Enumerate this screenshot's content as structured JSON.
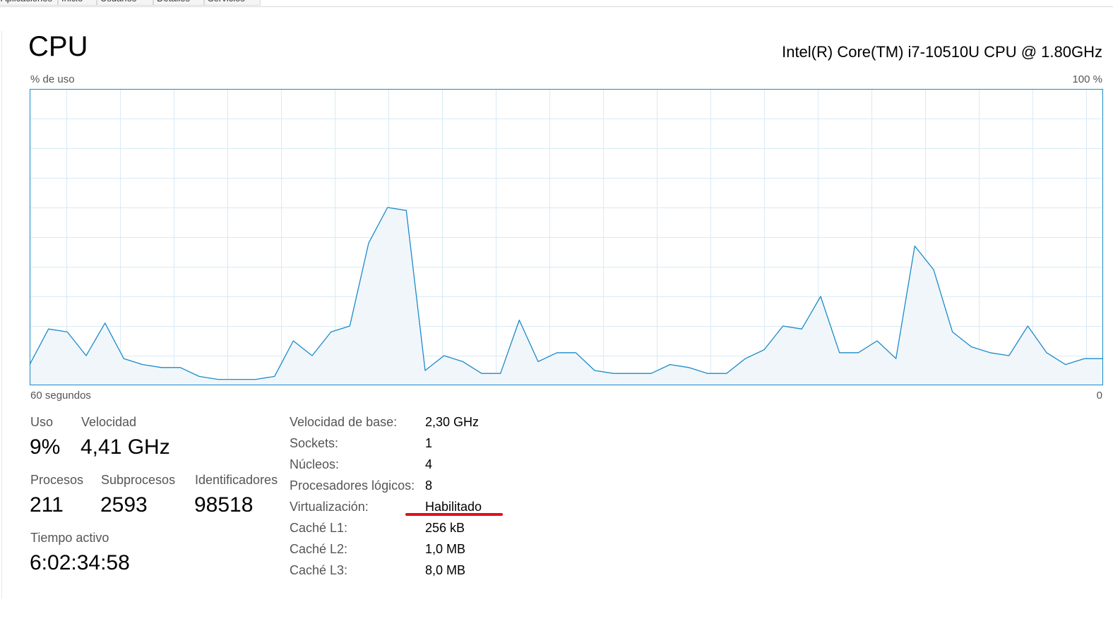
{
  "tabs": [
    {
      "label": "Aplicaciones"
    },
    {
      "label": "Inicio"
    },
    {
      "label": "Usuarios"
    },
    {
      "label": "Detalles"
    },
    {
      "label": "Servicios"
    }
  ],
  "header": {
    "title": "CPU",
    "model": "Intel(R) Core(TM) i7-10510U CPU @ 1.80GHz"
  },
  "graph": {
    "y_label": "% de uso",
    "y_max_label": "100 %",
    "x_label": "60 segundos",
    "x_min_label": "0",
    "line_color": "#1a8bc9",
    "fill_color": "#f1f6fb",
    "grid_color": "#d9eaf5",
    "border_color": "#1a8bc9"
  },
  "chart_data": {
    "type": "area",
    "title": "CPU",
    "xlabel": "60 segundos",
    "ylabel": "% de uso",
    "xlim": [
      60,
      0
    ],
    "ylim": [
      0,
      100
    ],
    "grid": true,
    "series": [
      {
        "name": "% de uso",
        "values": [
          7,
          19,
          18,
          10,
          21,
          9,
          7,
          6,
          6,
          3,
          2,
          2,
          2,
          3,
          15,
          10,
          18,
          20,
          48,
          60,
          59,
          5,
          10,
          8,
          4,
          4,
          22,
          8,
          11,
          11,
          5,
          4,
          4,
          4,
          7,
          6,
          4,
          4,
          9,
          12,
          20,
          19,
          30,
          11,
          11,
          15,
          9,
          47,
          39,
          18,
          13,
          11,
          10,
          20,
          11,
          7,
          9,
          9
        ]
      }
    ]
  },
  "stats": {
    "uso_label": "Uso",
    "uso_value": "9%",
    "velocidad_label": "Velocidad",
    "velocidad_value": "4,41 GHz",
    "procesos_label": "Procesos",
    "procesos_value": "211",
    "subprocesos_label": "Subprocesos",
    "subprocesos_value": "2593",
    "identificadores_label": "Identificadores",
    "identificadores_value": "98518",
    "tiempo_label": "Tiempo activo",
    "tiempo_value": "6:02:34:58"
  },
  "info": [
    {
      "label": "Velocidad de base:",
      "value": "2,30 GHz"
    },
    {
      "label": "Sockets:",
      "value": "1"
    },
    {
      "label": "Núcleos:",
      "value": "4"
    },
    {
      "label": "Procesadores lógicos:",
      "value": "8"
    },
    {
      "label": "Virtualización:",
      "value": "Habilitado"
    },
    {
      "label": "Caché L1:",
      "value": "256 kB"
    },
    {
      "label": "Caché L2:",
      "value": "1,0 MB"
    },
    {
      "label": "Caché L3:",
      "value": "8,0 MB"
    }
  ],
  "annotation": {
    "underline_color": "#e0101a"
  }
}
